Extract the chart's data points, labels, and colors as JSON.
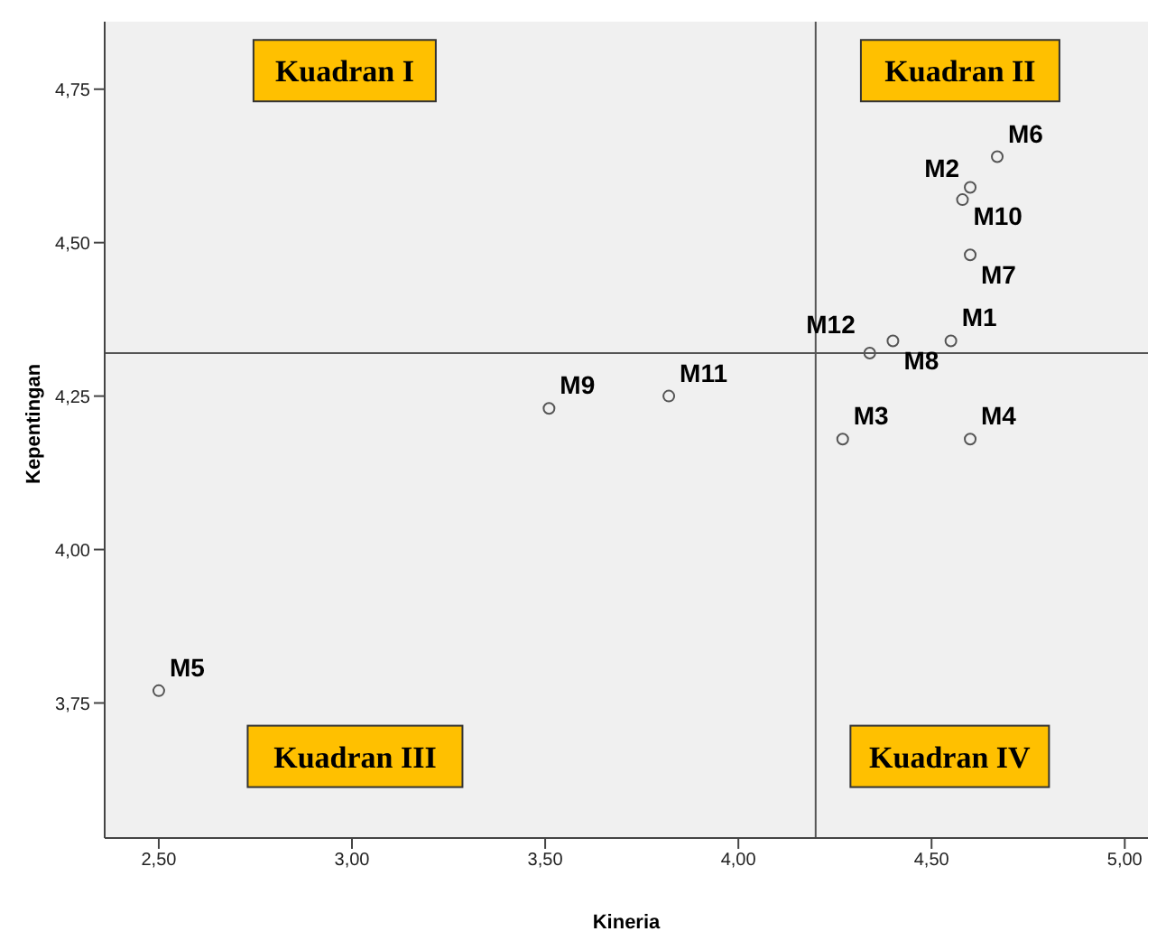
{
  "chart_data": {
    "type": "scatter",
    "xlabel": "Kineria",
    "ylabel": "Kepentingan",
    "xlim": [
      2.36,
      5.06
    ],
    "ylim": [
      3.53,
      4.86
    ],
    "xticks": [
      {
        "value": 2.5,
        "label": "2,50"
      },
      {
        "value": 3,
        "label": "3,00"
      },
      {
        "value": 3.5,
        "label": "3,50"
      },
      {
        "value": 4,
        "label": "4,00"
      },
      {
        "value": 4.5,
        "label": "4,50"
      },
      {
        "value": 5,
        "label": "5,00"
      }
    ],
    "yticks": [
      {
        "value": 3.75,
        "label": "3,75"
      },
      {
        "value": 4,
        "label": "4,00"
      },
      {
        "value": 4.25,
        "label": "4,25"
      },
      {
        "value": 4.5,
        "label": "4,50"
      },
      {
        "value": 4.75,
        "label": "4,75"
      }
    ],
    "grid": false,
    "legend": false,
    "marker": "circle",
    "series": [
      {
        "name": "M1",
        "color": "#555555",
        "x": [
          4.55
        ],
        "values": [
          4.34
        ]
      },
      {
        "name": "M2",
        "color": "#555555",
        "x": [
          4.6
        ],
        "values": [
          4.59
        ]
      },
      {
        "name": "M3",
        "color": "#555555",
        "x": [
          4.27
        ],
        "values": [
          4.18
        ]
      },
      {
        "name": "M4",
        "color": "#555555",
        "x": [
          4.6
        ],
        "values": [
          4.18
        ]
      },
      {
        "name": "M5",
        "color": "#555555",
        "x": [
          2.5
        ],
        "values": [
          3.77
        ]
      },
      {
        "name": "M6",
        "color": "#555555",
        "x": [
          4.67
        ],
        "values": [
          4.64
        ]
      },
      {
        "name": "M7",
        "color": "#555555",
        "x": [
          4.6
        ],
        "values": [
          4.48
        ]
      },
      {
        "name": "M8",
        "color": "#555555",
        "x": [
          4.4
        ],
        "values": [
          4.34
        ]
      },
      {
        "name": "M9",
        "color": "#555555",
        "x": [
          3.51
        ],
        "values": [
          4.23
        ]
      },
      {
        "name": "M10",
        "color": "#555555",
        "x": [
          4.58
        ],
        "values": [
          4.57
        ]
      },
      {
        "name": "M11",
        "color": "#555555",
        "x": [
          3.82
        ],
        "values": [
          4.25
        ]
      },
      {
        "name": "M12",
        "color": "#555555",
        "x": [
          4.34
        ],
        "values": [
          4.32
        ]
      }
    ],
    "ref_lines": [
      {
        "axis": "x",
        "value": 4.2,
        "color": "#555555"
      },
      {
        "axis": "y",
        "value": 4.32,
        "color": "#555555"
      }
    ],
    "annotations": [
      "Kuadran I",
      "Kuadran II",
      "Kuadran III",
      "Kuadran IV"
    ]
  }
}
